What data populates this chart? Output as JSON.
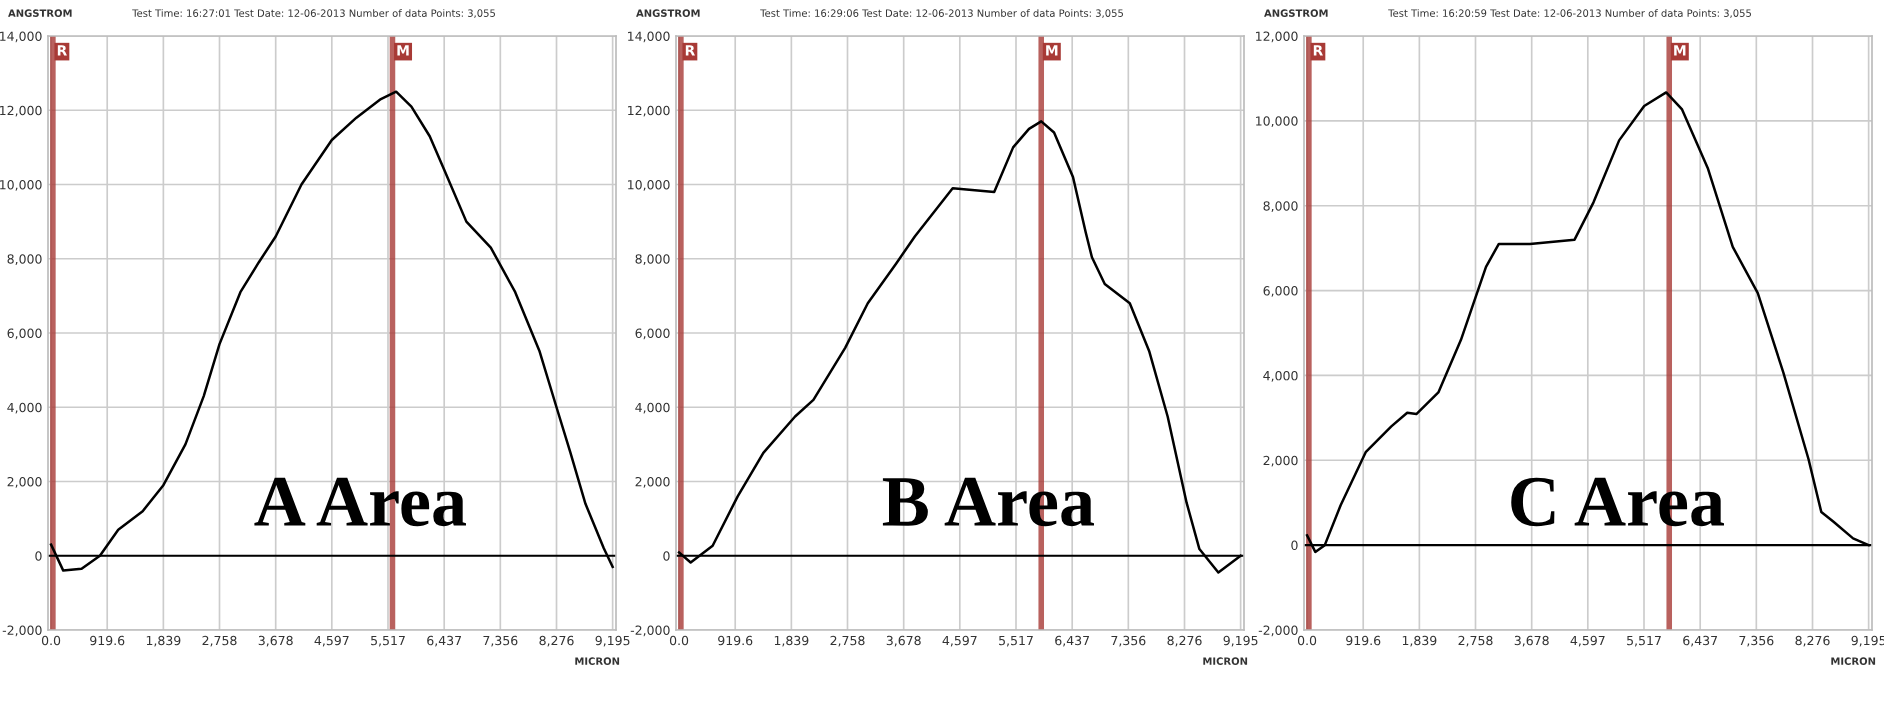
{
  "chart_data": [
    {
      "type": "line",
      "title": "Test Time: 16:27:01 Test Date: 12-06-2013 Number of data Points: 3,055",
      "xlabel": "MICRON",
      "ylabel": "ANGSTROM",
      "x": [
        0,
        200,
        500,
        800,
        1100,
        1500,
        1839,
        2200,
        2500,
        2758,
        3100,
        3400,
        3678,
        4100,
        4597,
        5000,
        5400,
        5650,
        5900,
        6200,
        6437,
        6800,
        7200,
        7600,
        8000,
        8276,
        8500,
        8750,
        8900,
        9050,
        9195
      ],
      "series": [
        {
          "color": "#000000",
          "values": [
            300,
            -400,
            -350,
            0,
            700,
            1200,
            1900,
            3000,
            4300,
            5700,
            7100,
            7900,
            8600,
            10000,
            11200,
            11800,
            12300,
            12500,
            12100,
            11300,
            10400,
            9000,
            8300,
            7100,
            5500,
            4000,
            2800,
            1400,
            800,
            200,
            -300
          ]
        }
      ],
      "xlim": [
        -50,
        9250
      ],
      "ylim": [
        -2000,
        14000
      ],
      "xticks": [
        {
          "value": 0,
          "label": "0.0"
        },
        {
          "value": 919.6,
          "label": "919.6"
        },
        {
          "value": 1839,
          "label": "1,839"
        },
        {
          "value": 2758,
          "label": "2,758"
        },
        {
          "value": 3678,
          "label": "3,678"
        },
        {
          "value": 4597,
          "label": "4,597"
        },
        {
          "value": 5517,
          "label": "5,517"
        },
        {
          "value": 6437,
          "label": "6,437"
        },
        {
          "value": 7356,
          "label": "7,356"
        },
        {
          "value": 8276,
          "label": "8,276"
        },
        {
          "value": 9195,
          "label": "9,195"
        }
      ],
      "yticks": [
        {
          "value": -2000,
          "label": "-2,000"
        },
        {
          "value": 0,
          "label": "0"
        },
        {
          "value": 2000,
          "label": "2,000"
        },
        {
          "value": 4000,
          "label": "4,000"
        },
        {
          "value": 6000,
          "label": "6,000"
        },
        {
          "value": 8000,
          "label": "8,000"
        },
        {
          "value": 10000,
          "label": "10,000"
        },
        {
          "value": 12000,
          "label": "12,000"
        },
        {
          "value": 14000,
          "label": "14,000"
        }
      ],
      "ref_lines": [
        {
          "axis": "x",
          "value": 30,
          "label": "R",
          "color": "#a83a36"
        },
        {
          "axis": "x",
          "value": 5590,
          "label": "M",
          "color": "#a83a36"
        },
        {
          "axis": "y",
          "value": 0,
          "color": "#000000"
        }
      ],
      "annotations": [
        "A Area"
      ],
      "grid": true,
      "legend": false,
      "marker": "none",
      "line_style": "solid"
    },
    {
      "type": "line",
      "title": "Test Time: 16:29:06 Test Date: 12-06-2013 Number of data Points: 3,055",
      "xlabel": "MICRON",
      "ylabel": "ANGSTROM",
      "x": [
        0,
        190,
        550,
        960,
        1380,
        1900,
        2200,
        2720,
        3090,
        3550,
        3860,
        4480,
        5160,
        5470,
        5730,
        5930,
        6140,
        6450,
        6660,
        6760,
        6970,
        7380,
        7700,
        8000,
        8310,
        8520,
        8830,
        9195
      ],
      "series": [
        {
          "color": "#000000",
          "values": [
            90,
            -180,
            270,
            1600,
            2770,
            3750,
            4200,
            5600,
            6800,
            7860,
            8600,
            9900,
            9800,
            11000,
            11500,
            11700,
            11400,
            10200,
            8700,
            8040,
            7320,
            6800,
            5500,
            3750,
            1430,
            180,
            -450,
            0
          ]
        }
      ],
      "xlim": [
        -50,
        9250
      ],
      "ylim": [
        -2000,
        14000
      ],
      "xticks": [
        {
          "value": 0,
          "label": "0.0"
        },
        919.6,
        {
          "value": 1839,
          "label": "1,839"
        },
        {
          "value": 2758,
          "label": "2,758"
        },
        {
          "value": 3678,
          "label": "3,678"
        },
        {
          "value": 4597,
          "label": "4,597"
        },
        {
          "value": 5517,
          "label": "5,517"
        },
        {
          "value": 6437,
          "label": "6,437"
        },
        {
          "value": 7356,
          "label": "7,356"
        },
        {
          "value": 8276,
          "label": "8,276"
        },
        {
          "value": 9195,
          "label": "9,195"
        }
      ],
      "yticks": [
        {
          "value": -2000,
          "label": "-2,000"
        },
        0,
        {
          "value": 2000,
          "label": "2,000"
        },
        {
          "value": 4000,
          "label": "4,000"
        },
        {
          "value": 6000,
          "label": "6,000"
        },
        {
          "value": 8000,
          "label": "8,000"
        },
        {
          "value": 10000,
          "label": "10,000"
        },
        {
          "value": 12000,
          "label": "12,000"
        },
        {
          "value": 14000,
          "label": "14,000"
        }
      ],
      "ref_lines": [
        {
          "axis": "x",
          "value": 30,
          "label": "R",
          "color": "#a83a36"
        },
        {
          "axis": "x",
          "value": 5930,
          "label": "M",
          "color": "#a83a36"
        },
        {
          "axis": "y",
          "value": 0,
          "color": "#000000"
        }
      ],
      "annotations": [
        "B Area"
      ],
      "grid": true,
      "legend": false,
      "marker": "none",
      "line_style": "solid"
    },
    {
      "type": "line",
      "title": "Test Time: 16:20:59 Test Date: 12-06-2013 Number of data Points: 3,055",
      "xlabel": "MICRON",
      "ylabel": "ANGSTROM",
      "x": [
        0,
        135,
        290,
        550,
        960,
        1380,
        1640,
        1790,
        2150,
        2520,
        2930,
        3140,
        3650,
        4380,
        4690,
        5110,
        5520,
        5880,
        6140,
        6560,
        6970,
        7380,
        7800,
        8210,
        8420,
        8620,
        8940,
        9195
      ],
      "series": [
        {
          "color": "#000000",
          "values": [
            230,
            -160,
            0,
            940,
            2190,
            2800,
            3120,
            3090,
            3600,
            4840,
            6560,
            7100,
            7100,
            7200,
            8080,
            9540,
            10350,
            10670,
            10270,
            8890,
            7030,
            5940,
            4060,
            2030,
            780,
            550,
            160,
            0
          ]
        }
      ],
      "xlim": [
        -50,
        9250
      ],
      "ylim": [
        -2000,
        12000
      ],
      "xticks": [
        {
          "value": 0,
          "label": "0.0"
        },
        919.6,
        {
          "value": 1839,
          "label": "1,839"
        },
        {
          "value": 2758,
          "label": "2,758"
        },
        {
          "value": 3678,
          "label": "3,678"
        },
        {
          "value": 4597,
          "label": "4,597"
        },
        {
          "value": 5517,
          "label": "5,517"
        },
        {
          "value": 6437,
          "label": "6,437"
        },
        {
          "value": 7356,
          "label": "7,356"
        },
        {
          "value": 8276,
          "label": "8,276"
        },
        {
          "value": 9195,
          "label": "9,195"
        }
      ],
      "yticks": [
        {
          "value": -2000,
          "label": "-2,000"
        },
        0,
        {
          "value": 2000,
          "label": "2,000"
        },
        {
          "value": 4000,
          "label": "4,000"
        },
        {
          "value": 6000,
          "label": "6,000"
        },
        {
          "value": 8000,
          "label": "8,000"
        },
        {
          "value": 10000,
          "label": "10,000"
        },
        {
          "value": 12000,
          "label": "12,000"
        }
      ],
      "ref_lines": [
        {
          "axis": "x",
          "value": 30,
          "label": "R",
          "color": "#a83a36"
        },
        {
          "axis": "x",
          "value": 5930,
          "label": "M",
          "color": "#a83a36"
        },
        {
          "axis": "y",
          "value": 0,
          "color": "#000000"
        }
      ],
      "annotations": [
        "C Area"
      ],
      "grid": true,
      "legend": false,
      "marker": "none",
      "line_style": "solid"
    }
  ]
}
